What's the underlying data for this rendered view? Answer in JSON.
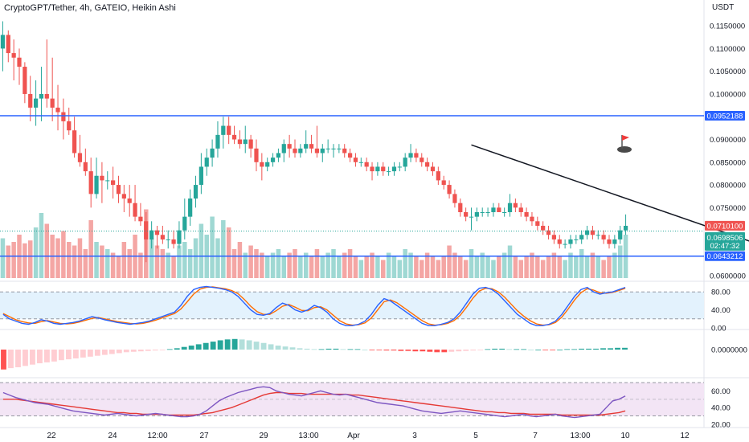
{
  "header": {
    "symbol_title": "CryptoGPT/Tether, 4h, GATEIO, Heikin Ashi",
    "currency": "USDT"
  },
  "colors": {
    "up": "#26a69a",
    "down": "#ef5350",
    "vol_up": "#9fd8d3",
    "vol_down": "#f4a6a4",
    "hline": "#2962ff",
    "trend": "#131722",
    "stoch_k": "#2962ff",
    "stoch_d": "#ff6d00",
    "rsi": "#7e57c2",
    "rsi_ma": "#e53935",
    "band_stoch": "#e3f2fd",
    "band_rsi": "#f3e5f5",
    "current_price_bg": "#ef5350",
    "up_label_bg": "#26a69a"
  },
  "price_axis": {
    "ticks": [
      "0.1150000",
      "0.1100000",
      "0.1050000",
      "0.1000000",
      "0.0900000",
      "0.0850000",
      "0.0800000",
      "0.0750000",
      "0.0600000"
    ],
    "tick_values": [
      0.115,
      0.11,
      0.105,
      0.1,
      0.09,
      0.085,
      0.08,
      0.075,
      0.06
    ],
    "range": [
      0.0595,
      0.1175
    ]
  },
  "price_labels": {
    "resistance": "0.0952188",
    "resistance_value": 0.0952188,
    "last_price": "0.0710100",
    "last_value": 0.07101,
    "ha_close": "0.0698506",
    "ha_close_value": 0.0698506,
    "countdown": "02:47:32",
    "support": "0.0643212",
    "support_value": 0.0643212
  },
  "indicator_axes": {
    "stoch": {
      "ticks": [
        "80.00",
        "40.00",
        "0.00"
      ],
      "values": [
        80,
        40,
        0
      ],
      "band": [
        20,
        80
      ],
      "range": [
        0,
        100
      ]
    },
    "macd": {
      "ticks": [
        "0.0000000"
      ],
      "values": [
        0
      ]
    },
    "rsi": {
      "ticks": [
        "60.00",
        "40.00",
        "20.00"
      ],
      "values": [
        60,
        40,
        20
      ],
      "band": [
        30,
        70
      ],
      "range": [
        18,
        72
      ]
    }
  },
  "time_axis": {
    "labels": [
      "22",
      "24",
      "12:00",
      "27",
      "29",
      "13:00",
      "Apr",
      "3",
      "5",
      "7",
      "13:00",
      "10",
      "12"
    ]
  },
  "trendline": {
    "from": [
      0.0888,
      85
    ],
    "to": [
      0.0632,
      146
    ]
  },
  "candles": [
    [
      0.11,
      0.116,
      0.105,
      0.113
    ],
    [
      0.113,
      0.114,
      0.107,
      0.109
    ],
    [
      0.109,
      0.112,
      0.103,
      0.108
    ],
    [
      0.108,
      0.11,
      0.102,
      0.106
    ],
    [
      0.106,
      0.107,
      0.098,
      0.1
    ],
    [
      0.1,
      0.104,
      0.094,
      0.097
    ],
    [
      0.097,
      0.103,
      0.093,
      0.099
    ],
    [
      0.099,
      0.106,
      0.094,
      0.1
    ],
    [
      0.1,
      0.112,
      0.097,
      0.099
    ],
    [
      0.099,
      0.108,
      0.094,
      0.097
    ],
    [
      0.097,
      0.102,
      0.092,
      0.096
    ],
    [
      0.096,
      0.099,
      0.09,
      0.094
    ],
    [
      0.094,
      0.097,
      0.091,
      0.092
    ],
    [
      0.092,
      0.095,
      0.086,
      0.087
    ],
    [
      0.087,
      0.091,
      0.084,
      0.085
    ],
    [
      0.085,
      0.088,
      0.082,
      0.083
    ],
    [
      0.083,
      0.086,
      0.075,
      0.078
    ],
    [
      0.078,
      0.086,
      0.077,
      0.082
    ],
    [
      0.082,
      0.085,
      0.076,
      0.081
    ],
    [
      0.081,
      0.083,
      0.079,
      0.081
    ],
    [
      0.081,
      0.084,
      0.077,
      0.08
    ],
    [
      0.08,
      0.082,
      0.076,
      0.078
    ],
    [
      0.078,
      0.08,
      0.074,
      0.077
    ],
    [
      0.077,
      0.08,
      0.073,
      0.076
    ],
    [
      0.076,
      0.08,
      0.072,
      0.073
    ],
    [
      0.073,
      0.076,
      0.071,
      0.072
    ],
    [
      0.072,
      0.074,
      0.063,
      0.068
    ],
    [
      0.068,
      0.072,
      0.066,
      0.07
    ],
    [
      0.07,
      0.071,
      0.066,
      0.069
    ],
    [
      0.069,
      0.071,
      0.067,
      0.068
    ],
    [
      0.068,
      0.07,
      0.066,
      0.068
    ],
    [
      0.068,
      0.07,
      0.066,
      0.067
    ],
    [
      0.067,
      0.072,
      0.066,
      0.07
    ],
    [
      0.07,
      0.077,
      0.068,
      0.073
    ],
    [
      0.073,
      0.079,
      0.071,
      0.077
    ],
    [
      0.077,
      0.082,
      0.075,
      0.08
    ],
    [
      0.08,
      0.087,
      0.078,
      0.084
    ],
    [
      0.084,
      0.088,
      0.082,
      0.086
    ],
    [
      0.086,
      0.09,
      0.084,
      0.088
    ],
    [
      0.088,
      0.094,
      0.086,
      0.091
    ],
    [
      0.091,
      0.095,
      0.088,
      0.093
    ],
    [
      0.093,
      0.095,
      0.089,
      0.091
    ],
    [
      0.091,
      0.093,
      0.089,
      0.09
    ],
    [
      0.09,
      0.092,
      0.088,
      0.089
    ],
    [
      0.089,
      0.093,
      0.087,
      0.09
    ],
    [
      0.09,
      0.091,
      0.086,
      0.088
    ],
    [
      0.088,
      0.09,
      0.083,
      0.085
    ],
    [
      0.085,
      0.087,
      0.081,
      0.084
    ],
    [
      0.084,
      0.086,
      0.083,
      0.085
    ],
    [
      0.085,
      0.087,
      0.084,
      0.086
    ],
    [
      0.086,
      0.088,
      0.085,
      0.087
    ],
    [
      0.087,
      0.09,
      0.085,
      0.089
    ],
    [
      0.089,
      0.091,
      0.086,
      0.088
    ],
    [
      0.088,
      0.09,
      0.086,
      0.087
    ],
    [
      0.087,
      0.089,
      0.086,
      0.088
    ],
    [
      0.088,
      0.092,
      0.087,
      0.089
    ],
    [
      0.089,
      0.091,
      0.087,
      0.088
    ],
    [
      0.088,
      0.093,
      0.086,
      0.087
    ],
    [
      0.087,
      0.089,
      0.085,
      0.088
    ],
    [
      0.088,
      0.09,
      0.087,
      0.088
    ],
    [
      0.088,
      0.089,
      0.086,
      0.088
    ],
    [
      0.088,
      0.089,
      0.087,
      0.088
    ],
    [
      0.088,
      0.089,
      0.086,
      0.087
    ],
    [
      0.087,
      0.088,
      0.085,
      0.086
    ],
    [
      0.086,
      0.087,
      0.084,
      0.085
    ],
    [
      0.085,
      0.086,
      0.084,
      0.085
    ],
    [
      0.085,
      0.086,
      0.083,
      0.084
    ],
    [
      0.084,
      0.085,
      0.081,
      0.083
    ],
    [
      0.083,
      0.085,
      0.082,
      0.084
    ],
    [
      0.084,
      0.085,
      0.082,
      0.083
    ],
    [
      0.083,
      0.084,
      0.082,
      0.083
    ],
    [
      0.083,
      0.085,
      0.082,
      0.084
    ],
    [
      0.084,
      0.085,
      0.083,
      0.084
    ],
    [
      0.084,
      0.087,
      0.083,
      0.086
    ],
    [
      0.086,
      0.089,
      0.085,
      0.087
    ],
    [
      0.087,
      0.088,
      0.085,
      0.086
    ],
    [
      0.086,
      0.087,
      0.084,
      0.085
    ],
    [
      0.085,
      0.086,
      0.083,
      0.084
    ],
    [
      0.084,
      0.085,
      0.082,
      0.083
    ],
    [
      0.083,
      0.084,
      0.08,
      0.081
    ],
    [
      0.081,
      0.082,
      0.079,
      0.08
    ],
    [
      0.08,
      0.081,
      0.077,
      0.078
    ],
    [
      0.078,
      0.079,
      0.075,
      0.076
    ],
    [
      0.076,
      0.077,
      0.073,
      0.074
    ],
    [
      0.074,
      0.075,
      0.072,
      0.073
    ],
    [
      0.073,
      0.075,
      0.07,
      0.073
    ],
    [
      0.073,
      0.075,
      0.072,
      0.074
    ],
    [
      0.074,
      0.075,
      0.073,
      0.074
    ],
    [
      0.074,
      0.075,
      0.073,
      0.074
    ],
    [
      0.074,
      0.076,
      0.073,
      0.075
    ],
    [
      0.075,
      0.076,
      0.074,
      0.074
    ],
    [
      0.074,
      0.075,
      0.073,
      0.074
    ],
    [
      0.074,
      0.078,
      0.073,
      0.076
    ],
    [
      0.076,
      0.077,
      0.074,
      0.075
    ],
    [
      0.075,
      0.076,
      0.073,
      0.074
    ],
    [
      0.074,
      0.075,
      0.072,
      0.073
    ],
    [
      0.073,
      0.074,
      0.071,
      0.072
    ],
    [
      0.072,
      0.073,
      0.07,
      0.071
    ],
    [
      0.071,
      0.072,
      0.069,
      0.07
    ],
    [
      0.07,
      0.071,
      0.068,
      0.069
    ],
    [
      0.069,
      0.07,
      0.067,
      0.068
    ],
    [
      0.068,
      0.069,
      0.066,
      0.067
    ],
    [
      0.067,
      0.068,
      0.066,
      0.067
    ],
    [
      0.067,
      0.069,
      0.066,
      0.068
    ],
    [
      0.068,
      0.069,
      0.067,
      0.068
    ],
    [
      0.068,
      0.07,
      0.067,
      0.069
    ],
    [
      0.069,
      0.071,
      0.068,
      0.07
    ],
    [
      0.07,
      0.071,
      0.068,
      0.069
    ],
    [
      0.069,
      0.07,
      0.068,
      0.069
    ],
    [
      0.069,
      0.07,
      0.067,
      0.068
    ],
    [
      0.068,
      0.069,
      0.066,
      0.067
    ],
    [
      0.067,
      0.069,
      0.066,
      0.068
    ],
    [
      0.068,
      0.071,
      0.067,
      0.07
    ],
    [
      0.07,
      0.0735,
      0.069,
      0.071
    ]
  ],
  "volumes": [
    0.55,
    0.45,
    0.5,
    0.6,
    0.48,
    0.52,
    0.7,
    0.9,
    0.75,
    0.6,
    0.55,
    0.65,
    0.5,
    0.45,
    0.55,
    0.4,
    0.8,
    0.5,
    0.45,
    0.4,
    0.35,
    0.3,
    0.5,
    0.4,
    0.6,
    0.35,
    0.95,
    0.55,
    0.45,
    0.4,
    0.35,
    0.3,
    0.45,
    0.5,
    0.4,
    0.55,
    0.75,
    0.6,
    0.85,
    0.55,
    0.8,
    0.7,
    0.4,
    0.5,
    0.35,
    0.45,
    0.4,
    0.35,
    0.3,
    0.35,
    0.4,
    0.3,
    0.35,
    0.4,
    0.3,
    0.35,
    0.3,
    0.4,
    0.3,
    0.35,
    0.4,
    0.3,
    0.35,
    0.4,
    0.3,
    0.25,
    0.3,
    0.35,
    0.3,
    0.25,
    0.35,
    0.3,
    0.25,
    0.4,
    0.35,
    0.3,
    0.25,
    0.35,
    0.3,
    0.25,
    0.3,
    0.45,
    0.35,
    0.3,
    0.25,
    0.4,
    0.3,
    0.35,
    0.3,
    0.25,
    0.3,
    0.35,
    0.45,
    0.3,
    0.25,
    0.3,
    0.35,
    0.3,
    0.25,
    0.3,
    0.35,
    0.3,
    0.25,
    0.35,
    0.3,
    0.4,
    0.3,
    0.35,
    0.3,
    0.25,
    0.3,
    0.35,
    0.45,
    0.6
  ],
  "stoch_k": [
    30,
    20,
    15,
    10,
    8,
    12,
    18,
    15,
    10,
    8,
    10,
    12,
    15,
    20,
    25,
    22,
    18,
    15,
    12,
    10,
    8,
    10,
    12,
    15,
    20,
    25,
    30,
    35,
    50,
    70,
    85,
    90,
    92,
    90,
    88,
    85,
    80,
    70,
    55,
    40,
    30,
    28,
    32,
    45,
    55,
    50,
    40,
    35,
    40,
    50,
    45,
    35,
    20,
    10,
    5,
    5,
    8,
    15,
    30,
    50,
    65,
    60,
    50,
    40,
    30,
    20,
    10,
    5,
    5,
    8,
    12,
    20,
    35,
    55,
    75,
    88,
    90,
    85,
    75,
    60,
    45,
    30,
    20,
    10,
    5,
    5,
    8,
    15,
    30,
    50,
    70,
    85,
    90,
    80,
    75,
    78,
    80,
    85,
    90
  ],
  "stoch_d": [
    32,
    25,
    18,
    14,
    11,
    10,
    14,
    16,
    13,
    10,
    9,
    10,
    13,
    17,
    21,
    23,
    20,
    17,
    14,
    12,
    10,
    9,
    10,
    13,
    17,
    22,
    27,
    32,
    42,
    58,
    75,
    86,
    90,
    91,
    89,
    87,
    83,
    76,
    63,
    48,
    36,
    30,
    30,
    38,
    48,
    52,
    46,
    39,
    38,
    45,
    47,
    40,
    28,
    16,
    9,
    6,
    7,
    11,
    22,
    40,
    58,
    62,
    56,
    46,
    36,
    26,
    16,
    9,
    6,
    7,
    10,
    16,
    28,
    46,
    66,
    82,
    88,
    87,
    80,
    68,
    53,
    38,
    26,
    16,
    9,
    6,
    7,
    12,
    24,
    42,
    62,
    78,
    87,
    84,
    78,
    77,
    79,
    83,
    88
  ],
  "macd": [
    -0.0045,
    -0.0042,
    -0.004,
    -0.0037,
    -0.0034,
    -0.0031,
    -0.0029,
    -0.0027,
    -0.0024,
    -0.0022,
    -0.002,
    -0.0018,
    -0.0016,
    -0.0014,
    -0.0012,
    -0.001,
    -0.0008,
    -0.0006,
    -0.0005,
    -0.0004,
    -0.0003,
    -0.0002,
    -0.0001,
    0.0001,
    0.0003,
    0.0006,
    0.0009,
    0.0012,
    0.0015,
    0.0018,
    0.0021,
    0.0023,
    0.0024,
    0.0023,
    0.0021,
    0.0018,
    0.0015,
    0.0012,
    0.0009,
    0.0007,
    0.0005,
    0.0003,
    0.0002,
    0.0001,
    0.0001,
    0.0002,
    0.0002,
    0.0001,
    0.0001,
    0.0001,
    0.0,
    -0.0001,
    -0.0001,
    -0.0002,
    -0.0002,
    -0.0003,
    -0.0003,
    -0.0004,
    -0.0004,
    -0.0005,
    -0.0006,
    -0.0006,
    -0.0005,
    -0.0004,
    -0.0003,
    -0.0002,
    -0.0001,
    0.0001,
    0.0002,
    0.0002,
    0.0001,
    0.0001,
    0.0001,
    0.0,
    0.0,
    -0.0001,
    -0.0001,
    0.0,
    0.0001,
    0.0001,
    0.0002,
    0.0002,
    0.0002,
    0.0003,
    0.0003,
    0.0004,
    0.0004
  ],
  "rsi": [
    58,
    55,
    52,
    50,
    48,
    46,
    45,
    44,
    42,
    40,
    38,
    36,
    35,
    34,
    33,
    32,
    31,
    32,
    33,
    32,
    31,
    30,
    31,
    32,
    33,
    32,
    31,
    30,
    29,
    29,
    30,
    32,
    36,
    42,
    48,
    52,
    55,
    58,
    60,
    62,
    64,
    65,
    64,
    60,
    58,
    56,
    55,
    54,
    56,
    58,
    60,
    58,
    56,
    55,
    56,
    54,
    52,
    50,
    48,
    46,
    45,
    44,
    43,
    42,
    40,
    38,
    36,
    35,
    34,
    33,
    34,
    35,
    36,
    35,
    34,
    33,
    32,
    31,
    30,
    29,
    30,
    31,
    32,
    30,
    29,
    30,
    31,
    32,
    30,
    29,
    28,
    29,
    30,
    31,
    32,
    40,
    48,
    50,
    54
  ],
  "rsi_ma": [
    50,
    50,
    50,
    49,
    48,
    47,
    46,
    45,
    44,
    43,
    42,
    41,
    40,
    39,
    38,
    37,
    36,
    35,
    34,
    34,
    33,
    33,
    32,
    32,
    32,
    32,
    31,
    31,
    31,
    31,
    31,
    32,
    33,
    34,
    36,
    38,
    40,
    43,
    46,
    49,
    52,
    55,
    57,
    58,
    58,
    57,
    57,
    57,
    56,
    56,
    56,
    56,
    56,
    56,
    56,
    55,
    55,
    54,
    53,
    52,
    51,
    50,
    49,
    48,
    47,
    46,
    45,
    44,
    43,
    42,
    41,
    40,
    39,
    38,
    37,
    36,
    35,
    35,
    34,
    34,
    33,
    33,
    33,
    32,
    32,
    32,
    32,
    32,
    31,
    31,
    31,
    31,
    31,
    31,
    31,
    32,
    33,
    34,
    36
  ]
}
